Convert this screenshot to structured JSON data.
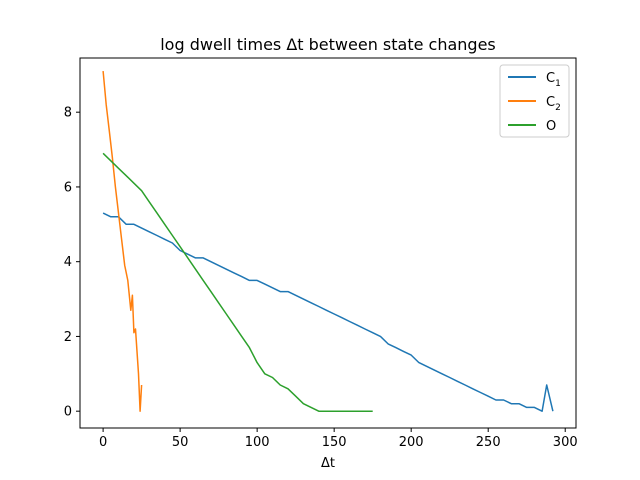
{
  "chart_data": {
    "type": "line",
    "title": "log dwell times Δt between state changes",
    "xlabel": "Δt",
    "ylabel": "",
    "xlim": [
      -15,
      307
    ],
    "ylim": [
      -0.45,
      9.45
    ],
    "xticks": [
      0,
      50,
      100,
      150,
      200,
      250,
      300
    ],
    "yticks": [
      0,
      2,
      4,
      6,
      8
    ],
    "legend_position": "top-right",
    "series": [
      {
        "name": "C1",
        "label_main": "C",
        "label_sub": "1",
        "color": "#1f77b4",
        "x": [
          0,
          5,
          10,
          15,
          20,
          25,
          30,
          35,
          40,
          45,
          50,
          55,
          60,
          65,
          70,
          75,
          80,
          85,
          90,
          95,
          100,
          105,
          110,
          115,
          120,
          125,
          130,
          135,
          140,
          145,
          150,
          155,
          160,
          165,
          170,
          175,
          180,
          185,
          190,
          195,
          200,
          205,
          210,
          215,
          220,
          225,
          230,
          235,
          240,
          245,
          250,
          255,
          260,
          265,
          270,
          275,
          280,
          285,
          288,
          292
        ],
        "y": [
          5.3,
          5.2,
          5.2,
          5.0,
          5.0,
          4.9,
          4.8,
          4.7,
          4.6,
          4.5,
          4.3,
          4.2,
          4.1,
          4.1,
          4.0,
          3.9,
          3.8,
          3.7,
          3.6,
          3.5,
          3.5,
          3.4,
          3.3,
          3.2,
          3.2,
          3.1,
          3.0,
          2.9,
          2.8,
          2.7,
          2.6,
          2.5,
          2.4,
          2.3,
          2.2,
          2.1,
          2.0,
          1.8,
          1.7,
          1.6,
          1.5,
          1.3,
          1.2,
          1.1,
          1.0,
          0.9,
          0.8,
          0.7,
          0.6,
          0.5,
          0.4,
          0.3,
          0.3,
          0.2,
          0.2,
          0.1,
          0.1,
          0.0,
          0.7,
          0.0
        ]
      },
      {
        "name": "C2",
        "label_main": "C",
        "label_sub": "2",
        "color": "#ff7f0e",
        "x": [
          0,
          2,
          4,
          6,
          8,
          10,
          12,
          14,
          16,
          17,
          18,
          19,
          20,
          21,
          22,
          23,
          24,
          25
        ],
        "y": [
          9.1,
          8.2,
          7.5,
          6.8,
          6.0,
          5.3,
          4.6,
          3.9,
          3.5,
          3.1,
          2.7,
          3.1,
          2.1,
          2.2,
          1.6,
          1.0,
          0.0,
          0.7
        ]
      },
      {
        "name": "O",
        "label_main": "O",
        "label_sub": "",
        "color": "#2ca02c",
        "x": [
          0,
          5,
          10,
          15,
          20,
          25,
          30,
          35,
          40,
          45,
          50,
          55,
          60,
          65,
          70,
          75,
          80,
          85,
          90,
          95,
          100,
          105,
          110,
          115,
          120,
          125,
          130,
          140,
          172,
          175
        ],
        "y": [
          6.9,
          6.7,
          6.5,
          6.3,
          6.1,
          5.9,
          5.6,
          5.3,
          5.0,
          4.7,
          4.4,
          4.1,
          3.8,
          3.5,
          3.2,
          2.9,
          2.6,
          2.3,
          2.0,
          1.7,
          1.3,
          1.0,
          0.9,
          0.7,
          0.6,
          0.4,
          0.2,
          0.0,
          0.0,
          0.0
        ]
      }
    ]
  }
}
